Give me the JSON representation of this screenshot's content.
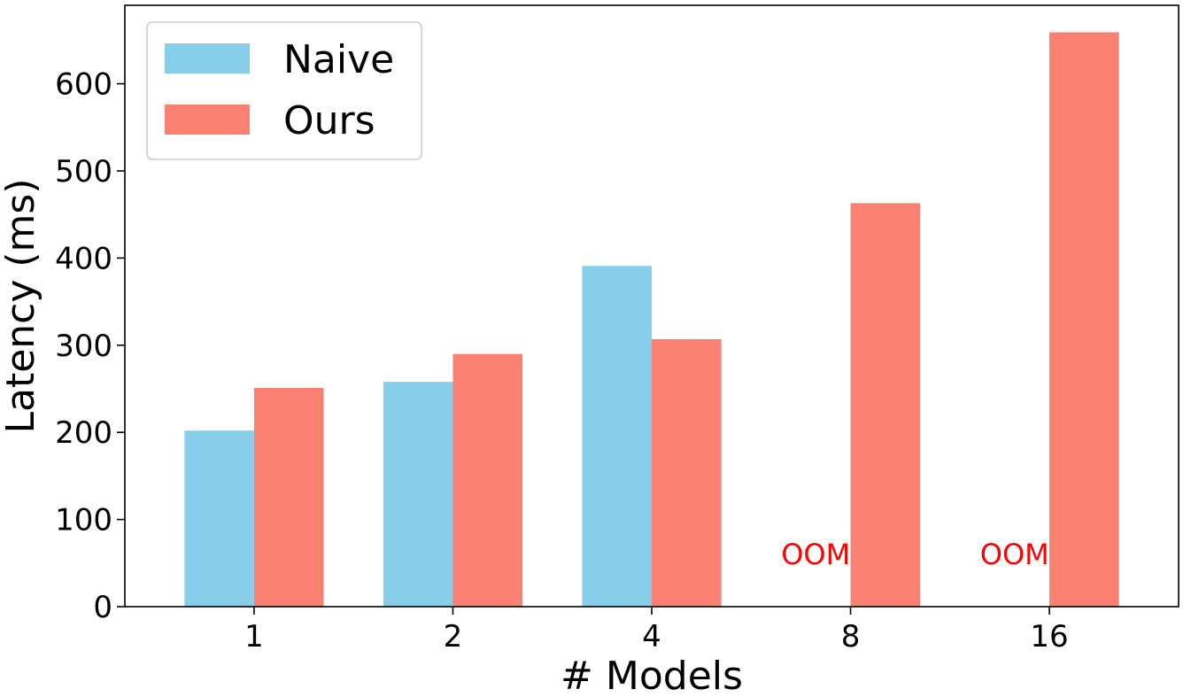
{
  "chart_data": {
    "type": "bar",
    "title": "",
    "xlabel": "# Models",
    "ylabel": "Latency (ms)",
    "categories": [
      "1",
      "2",
      "4",
      "8",
      "16"
    ],
    "ylim": [
      0,
      690
    ],
    "yticks": [
      0,
      100,
      200,
      300,
      400,
      500,
      600
    ],
    "grid": false,
    "legend_position": "top-left",
    "series": [
      {
        "name": "Naive",
        "color": "#87ceeb",
        "values": [
          202,
          258,
          391,
          null,
          null
        ]
      },
      {
        "name": "Ours",
        "color": "#fa8072",
        "values": [
          251,
          290,
          307,
          463,
          659
        ]
      }
    ],
    "annotations": [
      {
        "text": "OOM",
        "category": "8",
        "series": "Naive",
        "color": "#ff0000"
      },
      {
        "text": "OOM",
        "category": "16",
        "series": "Naive",
        "color": "#ff0000"
      }
    ]
  }
}
